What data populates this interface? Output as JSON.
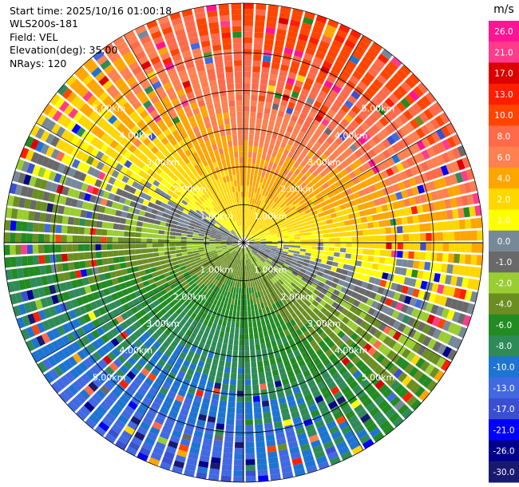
{
  "header": {
    "start_time": "Start time: 2025/10/16 01:00:18",
    "instrument": "WLS200s-181",
    "field": "Field: VEL",
    "elevation": "Elevation(deg): 35.00",
    "nrays": "NRays: 120"
  },
  "chart_data": {
    "type": "heatmap",
    "projection": "polar-ppi",
    "field": "VEL",
    "units": "m/s",
    "n_rays": 120,
    "elevation_deg": 35.0,
    "max_range_km": 6.3,
    "range_rings_km": [
      1,
      2,
      3,
      4,
      5
    ],
    "range_ring_labels": [
      "1.00km",
      "2.00km",
      "3.00km",
      "4.00km",
      "5.00km"
    ],
    "colorbar": {
      "unit": "m/s",
      "tick_labels": [
        "26.0",
        "21.0",
        "17.0",
        "13.0",
        "10.0",
        "8.0",
        "6.0",
        "4.0",
        "2.0",
        "1.0",
        "0.0",
        "-1.0",
        "-2.0",
        "-4.0",
        "-6.0",
        "-8.0",
        "-10.0",
        "-13.0",
        "-17.0",
        "-21.0",
        "-26.0",
        "-30.0"
      ],
      "colors": [
        "#ff1493",
        "#ff3c8c",
        "#dc0000",
        "#ff1e00",
        "#ff4500",
        "#ff6a4a",
        "#ff8050",
        "#ffa500",
        "#ffd700",
        "#ffff00",
        "#778899",
        "#696969",
        "#9acd32",
        "#6b8e23",
        "#228b22",
        "#2e8b57",
        "#1e74d2",
        "#4169e1",
        "#3a50d0",
        "#0000ff",
        "#00008b",
        "#191970"
      ]
    },
    "wind": {
      "approaching_direction_deg": 200,
      "receding_direction_deg": 20,
      "near_range_speed": 1.5,
      "far_range_speed": 12.5
    }
  }
}
